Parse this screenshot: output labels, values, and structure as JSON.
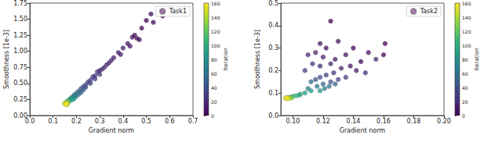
{
  "chart_data": [
    {
      "type": "scatter",
      "xlabel": "Gradient norm",
      "ylabel": "Smoothness [1e-3]",
      "xlim": [
        0,
        0.7
      ],
      "xticks": [
        {
          "value": 0,
          "label": "0.0"
        },
        0.1,
        0.2,
        0.3,
        0.4,
        0.5,
        0.6,
        0.7
      ],
      "ylim": [
        0,
        1.75
      ],
      "yticks": [
        {
          "value": 0,
          "label": "0.00"
        },
        0.25,
        {
          "value": 0.5,
          "label": "0.50"
        },
        0.75,
        {
          "value": 1,
          "label": "1.00"
        },
        1.25,
        {
          "value": 1.5,
          "label": "1.50"
        },
        1.75
      ],
      "grid": false,
      "legend": "upper right",
      "color_label": "Iteration",
      "color_range": [
        0,
        160
      ],
      "color_ticks": [
        0,
        20,
        40,
        60,
        80,
        100,
        120,
        140,
        160
      ],
      "series": [
        {
          "name": "Task1",
          "color": "#8c4a8c",
          "marker": "circle",
          "x": [
            0.57,
            0.52,
            0.5,
            0.53,
            0.48,
            0.45,
            0.46,
            0.44,
            0.47,
            0.42,
            0.43,
            0.4,
            0.38,
            0.39,
            0.36,
            0.35,
            0.34,
            0.33,
            0.32,
            0.31,
            0.3,
            0.29,
            0.3,
            0.28,
            0.27,
            0.28,
            0.26,
            0.25,
            0.26,
            0.24,
            0.23,
            0.24,
            0.22,
            0.23,
            0.21,
            0.22,
            0.2,
            0.21,
            0.19,
            0.2,
            0.19,
            0.18,
            0.18,
            0.19,
            0.17,
            0.18,
            0.17,
            0.16,
            0.165,
            0.16,
            0.155,
            0.16,
            0.155,
            0.15,
            0.16,
            0.155,
            0.15,
            0.16,
            0.155
          ],
          "y": [
            1.55,
            1.58,
            1.48,
            1.45,
            1.36,
            1.25,
            1.2,
            1.22,
            1.18,
            1.12,
            1.08,
            1.05,
            0.98,
            0.95,
            0.9,
            0.86,
            0.82,
            0.79,
            0.75,
            0.72,
            0.7,
            0.68,
            0.64,
            0.62,
            0.6,
            0.57,
            0.55,
            0.52,
            0.5,
            0.48,
            0.45,
            0.44,
            0.42,
            0.4,
            0.38,
            0.36,
            0.35,
            0.33,
            0.32,
            0.3,
            0.29,
            0.28,
            0.27,
            0.26,
            0.25,
            0.24,
            0.23,
            0.22,
            0.21,
            0.2,
            0.19,
            0.21,
            0.18,
            0.19,
            0.17,
            0.2,
            0.18,
            0.19,
            0.17
          ],
          "iteration": [
            0,
            1,
            2,
            3,
            4,
            5,
            6,
            7,
            8,
            9,
            10,
            11,
            12,
            13,
            14,
            15,
            16,
            17,
            18,
            19,
            20,
            21,
            22,
            23,
            24,
            26,
            28,
            30,
            32,
            34,
            36,
            38,
            40,
            44,
            48,
            52,
            56,
            60,
            64,
            68,
            72,
            76,
            80,
            85,
            90,
            95,
            100,
            105,
            110,
            115,
            120,
            125,
            130,
            135,
            140,
            145,
            150,
            155,
            160
          ]
        }
      ]
    },
    {
      "type": "scatter",
      "xlabel": "Gradient norm",
      "ylabel": "Smoothness [1e-3]",
      "xlim": [
        0.092,
        0.2
      ],
      "xticks": [
        {
          "value": 0.1,
          "label": "0.10"
        },
        0.12,
        0.14,
        0.16,
        0.18,
        {
          "value": 0.2,
          "label": "0.20"
        }
      ],
      "ylim": [
        0,
        0.5
      ],
      "yticks": [
        {
          "value": 0,
          "label": "0.0"
        },
        0.1,
        0.2,
        0.3,
        0.4,
        0.5
      ],
      "grid": false,
      "legend": "upper right",
      "color_label": "Iteration",
      "color_range": [
        0,
        160
      ],
      "color_ticks": [
        0,
        20,
        40,
        60,
        80,
        100,
        120,
        140,
        160
      ],
      "series": [
        {
          "name": "Task2",
          "color": "#8c4a8c",
          "marker": "circle",
          "x": [
            0.161,
            0.125,
            0.16,
            0.14,
            0.145,
            0.15,
            0.135,
            0.13,
            0.122,
            0.118,
            0.138,
            0.128,
            0.142,
            0.12,
            0.115,
            0.132,
            0.125,
            0.11,
            0.155,
            0.148,
            0.118,
            0.127,
            0.113,
            0.135,
            0.122,
            0.108,
            0.13,
            0.118,
            0.125,
            0.115,
            0.128,
            0.12,
            0.112,
            0.124,
            0.116,
            0.121,
            0.11,
            0.118,
            0.112,
            0.108,
            0.105,
            0.104,
            0.102,
            0.1,
            0.099,
            0.098,
            0.097,
            0.099,
            0.096,
            0.097,
            0.096,
            0.095,
            0.097,
            0.096
          ],
          "y": [
            0.32,
            0.42,
            0.27,
            0.3,
            0.24,
            0.28,
            0.27,
            0.33,
            0.3,
            0.32,
            0.22,
            0.25,
            0.2,
            0.26,
            0.28,
            0.21,
            0.23,
            0.27,
            0.25,
            0.19,
            0.22,
            0.19,
            0.23,
            0.17,
            0.18,
            0.2,
            0.16,
            0.17,
            0.15,
            0.16,
            0.14,
            0.14,
            0.15,
            0.13,
            0.13,
            0.12,
            0.12,
            0.11,
            0.11,
            0.1,
            0.095,
            0.09,
            0.088,
            0.085,
            0.082,
            0.08,
            0.08,
            0.078,
            0.077,
            0.079,
            0.076,
            0.078,
            0.075,
            0.077
          ],
          "iteration": [
            0,
            1,
            2,
            3,
            4,
            5,
            6,
            7,
            8,
            9,
            10,
            11,
            12,
            13,
            14,
            15,
            16,
            17,
            18,
            19,
            20,
            22,
            24,
            26,
            28,
            30,
            33,
            36,
            40,
            44,
            48,
            52,
            56,
            60,
            65,
            70,
            75,
            80,
            85,
            90,
            95,
            100,
            105,
            110,
            115,
            120,
            125,
            130,
            135,
            140,
            145,
            150,
            155,
            160
          ]
        }
      ]
    }
  ]
}
